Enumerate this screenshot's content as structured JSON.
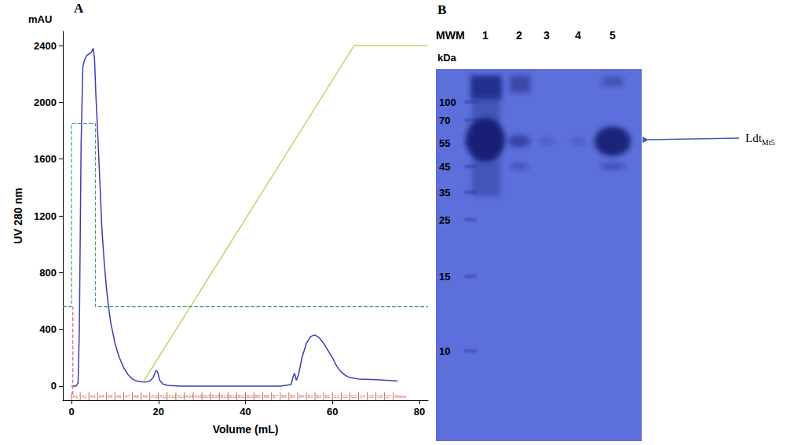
{
  "chart_data": {
    "type": "line",
    "title": "A",
    "xlabel": "Volume (mL)",
    "ylabel": "UV 280 nm",
    "ylabel_top": "mAU",
    "xlim": [
      -2,
      82
    ],
    "xticks": [
      0,
      20,
      40,
      60,
      80
    ],
    "ylim": [
      -100,
      2500
    ],
    "yticks": [
      0,
      400,
      800,
      1200,
      1600,
      2000,
      2400
    ],
    "grid": false,
    "series": [
      {
        "color": "#3a3fb0",
        "line_style": "solid",
        "x": [
          0,
          1,
          1.5,
          1.8,
          2.2,
          2.6,
          3,
          3.5,
          4,
          4.5,
          5,
          5.3,
          5.6,
          6,
          6.5,
          7,
          7.5,
          8,
          8.5,
          9,
          10,
          11,
          12,
          13,
          14,
          15,
          16,
          17,
          18,
          18.8,
          19.4,
          19.8,
          20.3,
          21,
          22,
          25,
          30,
          40,
          48,
          50.5,
          51,
          51.3,
          51.7,
          52.2,
          53,
          54,
          55,
          56,
          57,
          58,
          59,
          60,
          61,
          62,
          63,
          64,
          66,
          70,
          73,
          75
        ],
        "values": [
          0,
          0,
          20,
          400,
          1700,
          2250,
          2300,
          2330,
          2340,
          2350,
          2380,
          2300,
          2050,
          1800,
          1450,
          1100,
          880,
          700,
          560,
          450,
          300,
          200,
          130,
          80,
          50,
          35,
          30,
          28,
          35,
          60,
          110,
          100,
          40,
          15,
          5,
          0,
          0,
          0,
          0,
          10,
          70,
          90,
          40,
          80,
          200,
          300,
          350,
          360,
          340,
          300,
          250,
          200,
          140,
          100,
          75,
          60,
          50,
          45,
          40,
          35
        ]
      },
      {
        "color": "#c5d36a",
        "line_style": "solid",
        "x": [
          16.5,
          65,
          82
        ],
        "values": [
          30,
          2400,
          2400
        ]
      },
      {
        "color": "#3aa17a",
        "line_style": "dashed",
        "x": [
          -2,
          0,
          0,
          5.5,
          5.5,
          82
        ],
        "values": [
          560,
          560,
          1850,
          1850,
          560,
          560
        ]
      },
      {
        "color": "#e05a9a",
        "line_style": "dashed",
        "x": [
          0.3,
          0.3
        ],
        "values": [
          -60,
          560
        ]
      }
    ],
    "fractions": {
      "color": "#c0392b",
      "labels": [
        "A1",
        "A2",
        "A3",
        "A4",
        "A5",
        "A6",
        "A7",
        "A8",
        "A9",
        "A10",
        "A11",
        "A12",
        "A13",
        "A14",
        "A15",
        "B15",
        "B14",
        "B13",
        "B12",
        "B11",
        "B10",
        "B9",
        "B8",
        "B7",
        "B6",
        "B5",
        "B4",
        "B3",
        "B2",
        "B1",
        "C1",
        "C2",
        "C3",
        "C4",
        "C5",
        "C6",
        "C7",
        "Waste"
      ],
      "x": [
        0,
        2,
        4,
        6,
        8,
        10,
        12,
        14,
        16,
        18,
        20,
        22,
        24,
        26,
        28,
        30,
        32,
        34,
        36,
        38,
        40,
        42,
        44,
        46,
        48,
        50,
        52,
        54,
        56,
        58,
        60,
        62,
        64,
        66,
        68,
        70,
        72,
        74
      ]
    }
  },
  "gel": {
    "title": "B",
    "lane_labels": [
      "MWM",
      "1",
      "2",
      "3",
      "4",
      "5"
    ],
    "unit": "kDa",
    "markers": [
      100,
      70,
      55,
      45,
      35,
      25,
      15,
      10
    ],
    "band_label": {
      "text": "Ldt",
      "subscript": "Mt5"
    }
  }
}
